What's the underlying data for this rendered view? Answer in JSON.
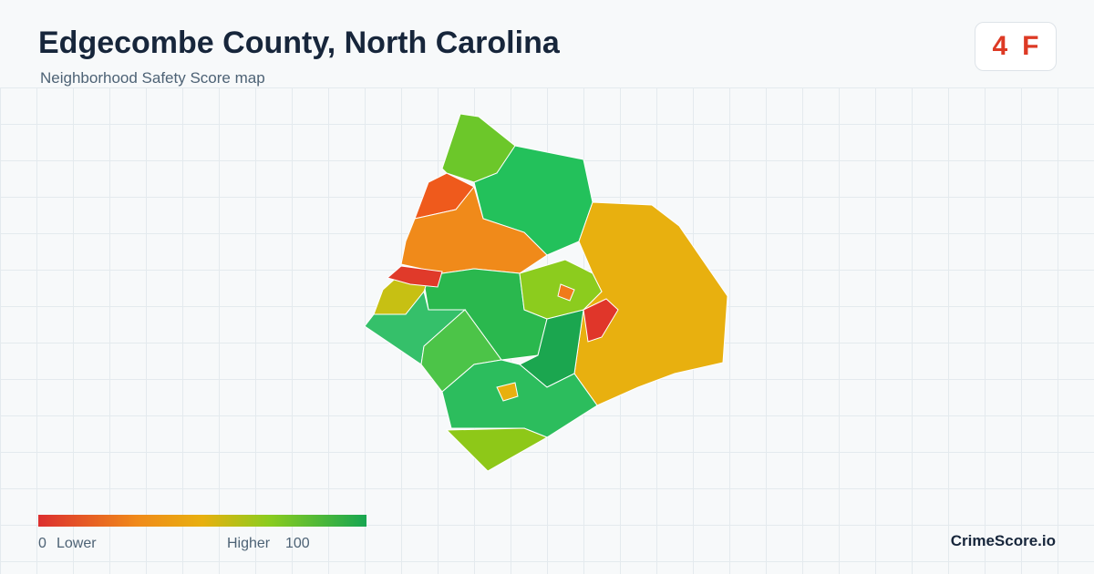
{
  "header": {
    "title": "Edgecombe County, North Carolina",
    "subtitle": "Neighborhood Safety Score map"
  },
  "badge": {
    "score": "4",
    "grade": "F"
  },
  "legend": {
    "min": "0",
    "low_label": "Lower",
    "high_label": "Higher",
    "max": "100"
  },
  "footer": {
    "brand": "CrimeScore.io"
  }
}
